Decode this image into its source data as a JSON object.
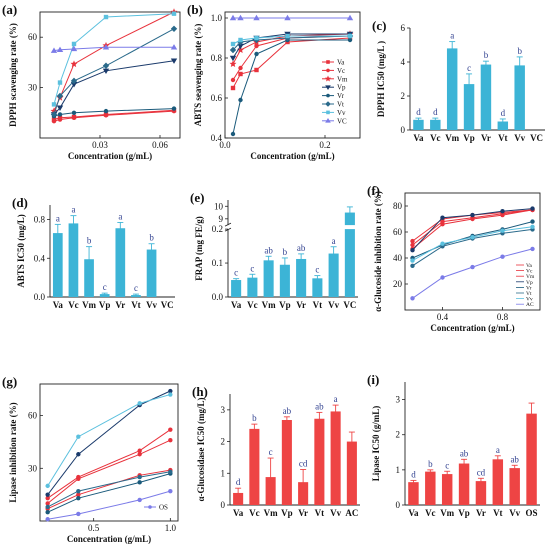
{
  "colors": {
    "va": "#E8323C",
    "vc": "#E8323C",
    "vm": "#E8323C",
    "vp": "#1A3A6B",
    "vr": "#1A5A7B",
    "vt": "#2A6A8B",
    "vv": "#5BC0DE",
    "vcRef": "#7B7BE8",
    "barCyan": "#3CB4D6",
    "barRed": "#EE4444",
    "sig": "#2F3F8F"
  },
  "chart_data": [
    {
      "id": "a",
      "panel": "(a)",
      "type": "line",
      "xlabel": "Concentration (g/mL)",
      "ylabel": "DPPH scavenging rate (%)",
      "xlim": [
        0,
        0.07
      ],
      "ylim": [
        0,
        75
      ],
      "xticks": [
        {
          "v": 0.03,
          "label": "0.03"
        },
        {
          "v": 0.06,
          "label": "0.06"
        }
      ],
      "yticks": [
        {
          "v": 30,
          "label": "30"
        },
        {
          "v": 60,
          "label": "60"
        }
      ],
      "x": [
        0.007,
        0.01,
        0.017,
        0.033,
        0.067
      ],
      "series": [
        {
          "name": "Va",
          "color": "#E8323C",
          "marker": "square",
          "y": [
            11,
            12,
            12.5,
            14,
            16.5
          ]
        },
        {
          "name": "Vc",
          "color": "#E8323C",
          "marker": "circle",
          "y": [
            10,
            11,
            12,
            13.5,
            16
          ]
        },
        {
          "name": "Vm",
          "color": "#E8323C",
          "marker": "star",
          "y": [
            16,
            24,
            44,
            55,
            75
          ]
        },
        {
          "name": "Vp",
          "color": "#1A3A6B",
          "marker": "triangle-down",
          "y": [
            14,
            18,
            32,
            40,
            46
          ]
        },
        {
          "name": "Vr",
          "color": "#1A5A7B",
          "marker": "circle",
          "y": [
            13,
            14,
            15,
            16,
            17.5
          ]
        },
        {
          "name": "Vt",
          "color": "#2A6A8B",
          "marker": "diamond",
          "y": [
            14,
            25,
            34,
            43,
            65
          ]
        },
        {
          "name": "Vv",
          "color": "#5BC0DE",
          "marker": "square",
          "y": [
            20,
            33,
            56,
            72,
            74
          ]
        },
        {
          "name": "VC",
          "color": "#7B7BE8",
          "marker": "triangle",
          "y": [
            52,
            52.5,
            53,
            54,
            54
          ]
        }
      ]
    },
    {
      "id": "b",
      "panel": "(b)",
      "type": "line",
      "xlabel": "Concentration (g/mL)",
      "ylabel": "ABTS seavenging rate (%)",
      "xlim": [
        0,
        0.27
      ],
      "ylim": [
        0.4,
        1.03
      ],
      "xticks": [
        {
          "v": 0,
          "label": "0.0"
        },
        {
          "v": 0.2,
          "label": "0.2"
        }
      ],
      "yticks": [
        {
          "v": 0.4,
          "label": "0.4"
        },
        {
          "v": 0.6,
          "label": "0.6"
        },
        {
          "v": 0.8,
          "label": "0.8"
        },
        {
          "v": 1.0,
          "label": "1.0"
        }
      ],
      "x": [
        0.016,
        0.031,
        0.063,
        0.125,
        0.25
      ],
      "series": [
        {
          "name": "Va",
          "color": "#E8323C",
          "marker": "square",
          "y": [
            0.65,
            0.72,
            0.74,
            0.88,
            0.9
          ]
        },
        {
          "name": "Vc",
          "color": "#E8323C",
          "marker": "circle",
          "y": [
            0.69,
            0.75,
            0.86,
            0.9,
            0.91
          ]
        },
        {
          "name": "Vm",
          "color": "#E8323C",
          "marker": "star",
          "y": [
            0.77,
            0.84,
            0.88,
            0.91,
            0.92
          ]
        },
        {
          "name": "Vp",
          "color": "#1A3A6B",
          "marker": "triangle-down",
          "y": [
            0.8,
            0.86,
            0.9,
            0.92,
            0.92
          ]
        },
        {
          "name": "Vr",
          "color": "#1A5A7B",
          "marker": "circle",
          "y": [
            0.42,
            0.59,
            0.82,
            0.89,
            0.89
          ]
        },
        {
          "name": "Vt",
          "color": "#2A6A8B",
          "marker": "diamond",
          "y": [
            0.84,
            0.88,
            0.89,
            0.9,
            0.91
          ]
        },
        {
          "name": "Vv",
          "color": "#5BC0DE",
          "marker": "square",
          "y": [
            0.87,
            0.89,
            0.9,
            0.91,
            0.91
          ]
        },
        {
          "name": "VC",
          "color": "#7B7BE8",
          "marker": "triangle",
          "y": [
            1.0,
            1.0,
            1.0,
            1.0,
            1.0
          ]
        }
      ],
      "legend": [
        "Va",
        "Vc",
        "Vm",
        "Vp",
        "Vr",
        "Vt",
        "Vv",
        "VC"
      ]
    },
    {
      "id": "c",
      "panel": "(c)",
      "type": "bar",
      "ylabel": "DPPH IC50 (mg/L )",
      "ylim": [
        0,
        6
      ],
      "yticks": [
        {
          "v": 0,
          "label": "0"
        },
        {
          "v": 2,
          "label": "2"
        },
        {
          "v": 4,
          "label": "4"
        },
        {
          "v": 6,
          "label": "6"
        }
      ],
      "categories": [
        "Va",
        "Vc",
        "Vm",
        "Vp",
        "Vr",
        "Vt",
        "Vv",
        "VC"
      ],
      "values": [
        0.6,
        0.6,
        4.8,
        2.7,
        3.85,
        0.5,
        3.8,
        0
      ],
      "errors": [
        0.1,
        0.1,
        0.4,
        0.6,
        0.2,
        0.15,
        0.5,
        0
      ],
      "labels": [
        "d",
        "d",
        "a",
        "c",
        "b",
        "d",
        "b",
        ""
      ],
      "color": "#3CB4D6"
    },
    {
      "id": "d",
      "panel": "(d)",
      "type": "bar",
      "ylabel": "ABTS IC50 (mg/L)",
      "ylim": [
        0,
        0.95
      ],
      "yticks": [
        {
          "v": 0,
          "label": "0.0"
        },
        {
          "v": 0.4,
          "label": "0.4"
        },
        {
          "v": 0.8,
          "label": "0.8"
        }
      ],
      "categories": [
        "Va",
        "Vc",
        "Vm",
        "Vp",
        "Vr",
        "Vt",
        "Vv",
        "VC"
      ],
      "values": [
        0.66,
        0.76,
        0.39,
        0.03,
        0.71,
        0.02,
        0.49,
        0
      ],
      "errors": [
        0.09,
        0.08,
        0.13,
        0.01,
        0.06,
        0.01,
        0.06,
        0
      ],
      "labels": [
        "a",
        "a",
        "b",
        "c",
        "a",
        "c",
        "b",
        ""
      ],
      "color": "#3CB4D6"
    },
    {
      "id": "e",
      "panel": "(e)",
      "type": "bar",
      "ylabel": "FRAP (mg FE/g)",
      "broken_axis": true,
      "lower_ylim": [
        0,
        0.2
      ],
      "upper_ylim": [
        8.5,
        10.5
      ],
      "lower_yticks": [
        {
          "v": 0,
          "label": "0.0"
        },
        {
          "v": 0.1,
          "label": "0.1"
        },
        {
          "v": 0.2,
          "label": "0.2"
        }
      ],
      "upper_yticks": [
        {
          "v": 9,
          "label": "9"
        },
        {
          "v": 10,
          "label": "10"
        }
      ],
      "categories": [
        "Va",
        "Vc",
        "Vm",
        "Vp",
        "Vr",
        "Vt",
        "Vv",
        "VC"
      ],
      "values": [
        0.05,
        0.057,
        0.108,
        0.095,
        0.112,
        0.055,
        0.128,
        9.5
      ],
      "errors": [
        0.004,
        0.01,
        0.012,
        0.02,
        0.015,
        0.008,
        0.02,
        0.45
      ],
      "labels": [
        "c",
        "c",
        "ab",
        "b",
        "ab",
        "c",
        "a",
        ""
      ],
      "color": "#3CB4D6"
    },
    {
      "id": "f",
      "panel": "(f)",
      "type": "line",
      "xlabel": "Concentration (g/mL)",
      "ylabel": "α-Glucoside inhibition rate (%)",
      "xlim": [
        0.15,
        1.05
      ],
      "ylim": [
        0,
        90
      ],
      "xticks": [
        {
          "v": 0.4,
          "label": "0.4"
        },
        {
          "v": 0.8,
          "label": "0.8"
        }
      ],
      "yticks": [
        {
          "v": 20,
          "label": "20"
        },
        {
          "v": 40,
          "label": "40"
        },
        {
          "v": 60,
          "label": "60"
        },
        {
          "v": 80,
          "label": "80"
        }
      ],
      "x": [
        0.2,
        0.4,
        0.6,
        0.8,
        1.0
      ],
      "series": [
        {
          "name": "Va",
          "color": "#E8323C",
          "marker": "circle",
          "y": [
            53,
            70,
            73,
            75,
            77
          ]
        },
        {
          "name": "Vc",
          "color": "#E8323C",
          "marker": "circle",
          "y": [
            50,
            68,
            71,
            74,
            77
          ]
        },
        {
          "name": "Vm",
          "color": "#E8323C",
          "marker": "circle",
          "y": [
            47,
            66,
            70,
            73,
            77
          ]
        },
        {
          "name": "Vp",
          "color": "#1A3A6B",
          "marker": "circle",
          "y": [
            46,
            71,
            73,
            76,
            78
          ]
        },
        {
          "name": "Vr",
          "color": "#1A5A7B",
          "marker": "circle",
          "y": [
            40,
            50,
            57,
            62,
            68
          ]
        },
        {
          "name": "Vt",
          "color": "#2A6A8B",
          "marker": "circle",
          "y": [
            34,
            49,
            55,
            59,
            62
          ]
        },
        {
          "name": "Vv",
          "color": "#5BC0DE",
          "marker": "circle",
          "y": [
            38,
            51,
            56,
            61,
            64
          ]
        },
        {
          "name": "AC",
          "color": "#7B7BE8",
          "marker": "circle",
          "y": [
            9,
            25,
            33,
            41,
            47
          ]
        }
      ],
      "legend": [
        "Va",
        "Vc",
        "Vm",
        "Vp",
        "Vr",
        "Vt",
        "Vv",
        "AC"
      ]
    },
    {
      "id": "g",
      "panel": "(g)",
      "type": "line",
      "xlabel": "Concentration (g/mL)",
      "ylabel": "Lipase inhibition rate (%)",
      "xlim": [
        0.15,
        1.05
      ],
      "ylim": [
        0,
        78
      ],
      "xticks": [
        {
          "v": 0.5,
          "label": "0.5"
        },
        {
          "v": 1.0,
          "label": "1.0"
        }
      ],
      "yticks": [
        {
          "v": 30,
          "label": "30"
        },
        {
          "v": 60,
          "label": "60"
        }
      ],
      "x": [
        0.2,
        0.4,
        0.8,
        1.0
      ],
      "series": [
        {
          "name": "Va",
          "color": "#E8323C",
          "marker": "circle",
          "y": [
            13,
            25,
            40,
            52
          ]
        },
        {
          "name": "Vc",
          "color": "#E8323C",
          "marker": "circle",
          "y": [
            10,
            24,
            38,
            46
          ]
        },
        {
          "name": "Vm",
          "color": "#E8323C",
          "marker": "circle",
          "y": [
            7,
            15,
            26,
            29
          ]
        },
        {
          "name": "Vp",
          "color": "#1A3A6B",
          "marker": "circle",
          "y": [
            15,
            38,
            66,
            74
          ]
        },
        {
          "name": "Vr",
          "color": "#1A5A7B",
          "marker": "circle",
          "y": [
            5,
            13,
            22,
            27
          ]
        },
        {
          "name": "Vt",
          "color": "#2A6A8B",
          "marker": "circle",
          "y": [
            8,
            17,
            25,
            28
          ]
        },
        {
          "name": "Vv",
          "color": "#5BC0DE",
          "marker": "circle",
          "y": [
            20,
            48,
            67,
            72
          ]
        },
        {
          "name": "OS",
          "color": "#7B7BE8",
          "marker": "circle",
          "y": [
            1,
            4,
            12,
            17
          ]
        }
      ],
      "legend": [
        "OS"
      ]
    },
    {
      "id": "h",
      "panel": "(h)",
      "type": "bar",
      "ylabel": "α-Glucosidase IC50 (mg/L)",
      "ylim": [
        0,
        3.5
      ],
      "yticks": [
        {
          "v": 0,
          "label": "0"
        },
        {
          "v": 1,
          "label": "1"
        },
        {
          "v": 2,
          "label": "2"
        },
        {
          "v": 3,
          "label": "3"
        }
      ],
      "categories": [
        "Va",
        "Vc",
        "Vm",
        "Vp",
        "Vr",
        "Vt",
        "Vv",
        "AC"
      ],
      "values": [
        0.38,
        2.4,
        0.88,
        2.68,
        0.72,
        2.72,
        2.95,
        2.0
      ],
      "errors": [
        0.15,
        0.15,
        0.6,
        0.1,
        0.4,
        0.2,
        0.2,
        0.3
      ],
      "labels": [
        "d",
        "b",
        "c",
        "ab",
        "cd",
        "ab",
        "a",
        ""
      ],
      "color": "#EE4444"
    },
    {
      "id": "i",
      "panel": "(i)",
      "type": "bar",
      "ylabel": "Lipase IC50 (g/mL)",
      "ylim": [
        0,
        3.5
      ],
      "yticks": [
        {
          "v": 0,
          "label": "0"
        },
        {
          "v": 1,
          "label": "1"
        },
        {
          "v": 2,
          "label": "2"
        },
        {
          "v": 3,
          "label": "3"
        }
      ],
      "categories": [
        "Va",
        "Vc",
        "Vm",
        "Vp",
        "Vr",
        "Vt",
        "Vv",
        "OS"
      ],
      "values": [
        0.65,
        0.95,
        0.88,
        1.18,
        0.68,
        1.3,
        1.05,
        2.6
      ],
      "errors": [
        0.05,
        0.05,
        0.08,
        0.12,
        0.08,
        0.1,
        0.08,
        0.3
      ],
      "labels": [
        "d",
        "b",
        "c",
        "ab",
        "cd",
        "a",
        "ab",
        ""
      ],
      "color": "#EE4444"
    }
  ]
}
